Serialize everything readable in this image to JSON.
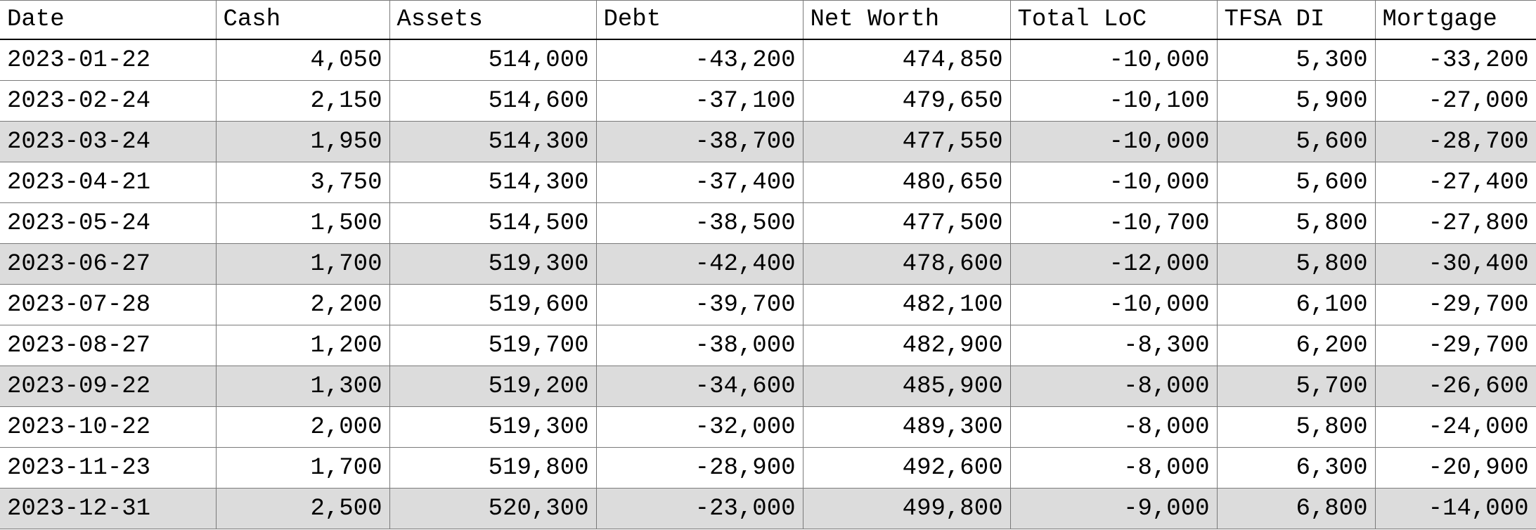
{
  "table": {
    "columns": [
      "Date",
      "Cash",
      "Assets",
      "Debt",
      "Net Worth",
      "Total LoC",
      "TFSA DI",
      "Mortgage"
    ],
    "shade_color": "#dcdcdc",
    "rows": [
      {
        "shaded": false,
        "cells": [
          "2023-01-22",
          "4,050",
          "514,000",
          "-43,200",
          "474,850",
          "-10,000",
          "5,300",
          "-33,200"
        ]
      },
      {
        "shaded": false,
        "cells": [
          "2023-02-24",
          "2,150",
          "514,600",
          "-37,100",
          "479,650",
          "-10,100",
          "5,900",
          "-27,000"
        ]
      },
      {
        "shaded": true,
        "cells": [
          "2023-03-24",
          "1,950",
          "514,300",
          "-38,700",
          "477,550",
          "-10,000",
          "5,600",
          "-28,700"
        ]
      },
      {
        "shaded": false,
        "cells": [
          "2023-04-21",
          "3,750",
          "514,300",
          "-37,400",
          "480,650",
          "-10,000",
          "5,600",
          "-27,400"
        ]
      },
      {
        "shaded": false,
        "cells": [
          "2023-05-24",
          "1,500",
          "514,500",
          "-38,500",
          "477,500",
          "-10,700",
          "5,800",
          "-27,800"
        ]
      },
      {
        "shaded": true,
        "cells": [
          "2023-06-27",
          "1,700",
          "519,300",
          "-42,400",
          "478,600",
          "-12,000",
          "5,800",
          "-30,400"
        ]
      },
      {
        "shaded": false,
        "cells": [
          "2023-07-28",
          "2,200",
          "519,600",
          "-39,700",
          "482,100",
          "-10,000",
          "6,100",
          "-29,700"
        ]
      },
      {
        "shaded": false,
        "cells": [
          "2023-08-27",
          "1,200",
          "519,700",
          "-38,000",
          "482,900",
          "-8,300",
          "6,200",
          "-29,700"
        ]
      },
      {
        "shaded": true,
        "cells": [
          "2023-09-22",
          "1,300",
          "519,200",
          "-34,600",
          "485,900",
          "-8,000",
          "5,700",
          "-26,600"
        ]
      },
      {
        "shaded": false,
        "cells": [
          "2023-10-22",
          "2,000",
          "519,300",
          "-32,000",
          "489,300",
          "-8,000",
          "5,800",
          "-24,000"
        ]
      },
      {
        "shaded": false,
        "cells": [
          "2023-11-23",
          "1,700",
          "519,800",
          "-28,900",
          "492,600",
          "-8,000",
          "6,300",
          "-20,900"
        ]
      },
      {
        "shaded": true,
        "cells": [
          "2023-12-31",
          "2,500",
          "520,300",
          "-23,000",
          "499,800",
          "-9,000",
          "6,800",
          "-14,000"
        ]
      }
    ]
  }
}
